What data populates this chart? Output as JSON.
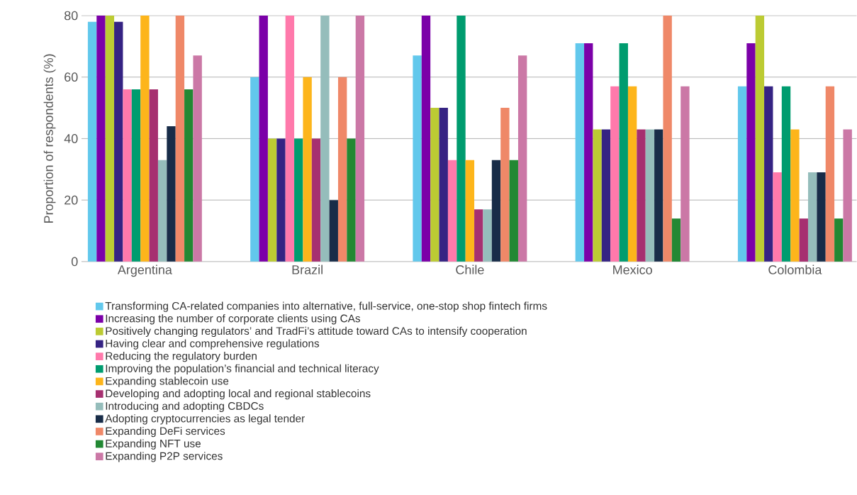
{
  "chart_data": {
    "type": "bar",
    "ylabel": "Proportion of respondents (%)",
    "categories": [
      "Argentina",
      "Brazil",
      "Chile",
      "Mexico",
      "Colombia"
    ],
    "ylim": [
      0,
      80
    ],
    "yticks": [
      0,
      20,
      40,
      60,
      80
    ],
    "grid": "y",
    "legend": "bottom",
    "series": [
      {
        "name": "Transforming CA-related companies into alternative, full-service, one-stop shop fintech firms",
        "color": "#62c8ec",
        "values": [
          78,
          60,
          67,
          71,
          57
        ]
      },
      {
        "name": "Increasing the number of corporate clients using CAs",
        "color": "#7b00a8",
        "values": [
          80,
          80,
          80,
          71,
          71
        ]
      },
      {
        "name": "Positively changing regulators’ and TradFi’s attitude toward CAs to intensify cooperation",
        "color": "#bccb33",
        "values": [
          80,
          40,
          50,
          43,
          80
        ]
      },
      {
        "name": "Having clear and comprehensive regulations",
        "color": "#352383",
        "values": [
          78,
          40,
          50,
          43,
          57
        ]
      },
      {
        "name": "Reducing the regulatory burden",
        "color": "#ff79ab",
        "values": [
          56,
          80,
          33,
          57,
          29
        ]
      },
      {
        "name": "Improving the population’s financial and technical literacy",
        "color": "#009c6f",
        "values": [
          56,
          40,
          80,
          71,
          57
        ]
      },
      {
        "name": "Expanding stablecoin use",
        "color": "#fdb51b",
        "values": [
          80,
          60,
          33,
          57,
          43
        ]
      },
      {
        "name": "Developing and adopting local and regional stablecoins",
        "color": "#a63070",
        "values": [
          56,
          40,
          17,
          43,
          14
        ]
      },
      {
        "name": "Introducing and adopting CBDCs",
        "color": "#95bdbb",
        "values": [
          33,
          80,
          17,
          43,
          29
        ]
      },
      {
        "name": "Adopting cryptocurrencies as legal tender",
        "color": "#182c48",
        "values": [
          44,
          20,
          33,
          43,
          29
        ]
      },
      {
        "name": "Expanding DeFi services",
        "color": "#ef8868",
        "values": [
          80,
          60,
          50,
          80,
          57
        ]
      },
      {
        "name": "Expanding NFT use",
        "color": "#228833",
        "values": [
          56,
          40,
          33,
          14,
          14
        ]
      },
      {
        "name": "Expanding P2P services",
        "color": "#cb78a6",
        "values": [
          67,
          80,
          67,
          57,
          43
        ]
      }
    ]
  }
}
